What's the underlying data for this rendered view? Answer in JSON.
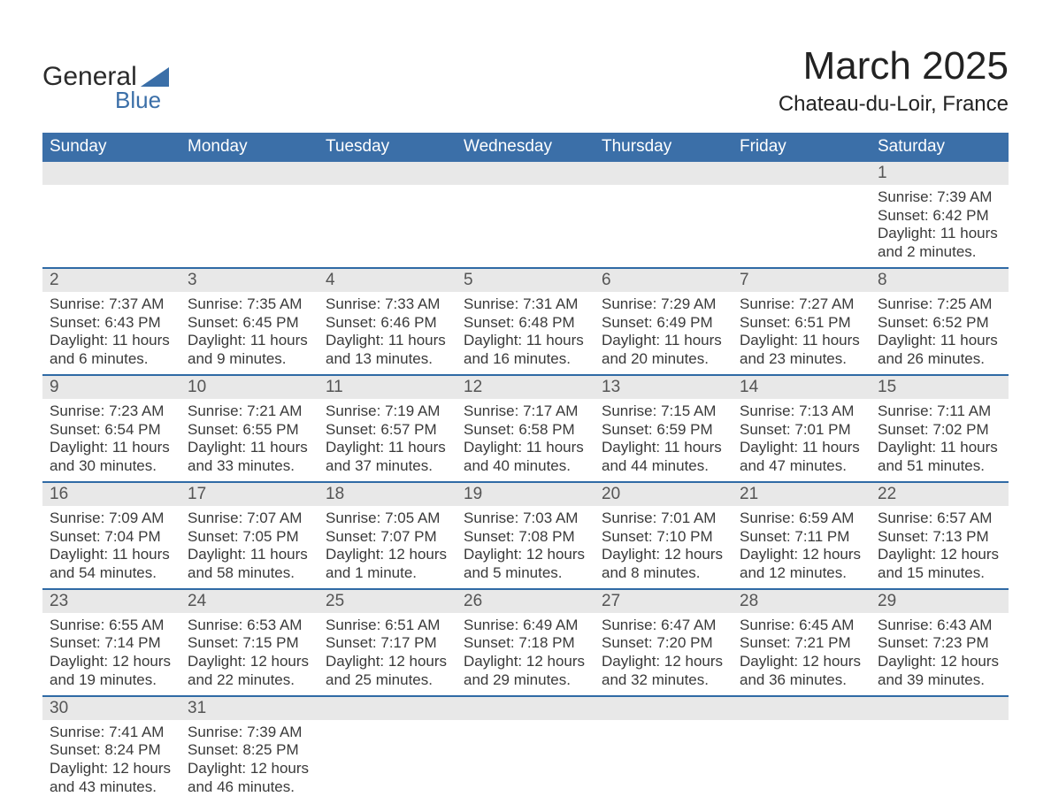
{
  "brand": {
    "line1": "General",
    "line2": "Blue"
  },
  "header": {
    "month_title": "March 2025",
    "location": "Chateau-du-Loir, France"
  },
  "colors": {
    "header_blue": "#3b6fa8",
    "row_separator": "#2f6aa5",
    "grey_bg": "#e8e8e8",
    "text": "#3a3a3a",
    "background": "#ffffff"
  },
  "calendar": {
    "type": "table",
    "columns": [
      "Sunday",
      "Monday",
      "Tuesday",
      "Wednesday",
      "Thursday",
      "Friday",
      "Saturday"
    ],
    "weeks": [
      [
        null,
        null,
        null,
        null,
        null,
        null,
        {
          "n": "1",
          "sunrise": "Sunrise: 7:39 AM",
          "sunset": "Sunset: 6:42 PM",
          "daylight": "Daylight: 11 hours and 2 minutes."
        }
      ],
      [
        {
          "n": "2",
          "sunrise": "Sunrise: 7:37 AM",
          "sunset": "Sunset: 6:43 PM",
          "daylight": "Daylight: 11 hours and 6 minutes."
        },
        {
          "n": "3",
          "sunrise": "Sunrise: 7:35 AM",
          "sunset": "Sunset: 6:45 PM",
          "daylight": "Daylight: 11 hours and 9 minutes."
        },
        {
          "n": "4",
          "sunrise": "Sunrise: 7:33 AM",
          "sunset": "Sunset: 6:46 PM",
          "daylight": "Daylight: 11 hours and 13 minutes."
        },
        {
          "n": "5",
          "sunrise": "Sunrise: 7:31 AM",
          "sunset": "Sunset: 6:48 PM",
          "daylight": "Daylight: 11 hours and 16 minutes."
        },
        {
          "n": "6",
          "sunrise": "Sunrise: 7:29 AM",
          "sunset": "Sunset: 6:49 PM",
          "daylight": "Daylight: 11 hours and 20 minutes."
        },
        {
          "n": "7",
          "sunrise": "Sunrise: 7:27 AM",
          "sunset": "Sunset: 6:51 PM",
          "daylight": "Daylight: 11 hours and 23 minutes."
        },
        {
          "n": "8",
          "sunrise": "Sunrise: 7:25 AM",
          "sunset": "Sunset: 6:52 PM",
          "daylight": "Daylight: 11 hours and 26 minutes."
        }
      ],
      [
        {
          "n": "9",
          "sunrise": "Sunrise: 7:23 AM",
          "sunset": "Sunset: 6:54 PM",
          "daylight": "Daylight: 11 hours and 30 minutes."
        },
        {
          "n": "10",
          "sunrise": "Sunrise: 7:21 AM",
          "sunset": "Sunset: 6:55 PM",
          "daylight": "Daylight: 11 hours and 33 minutes."
        },
        {
          "n": "11",
          "sunrise": "Sunrise: 7:19 AM",
          "sunset": "Sunset: 6:57 PM",
          "daylight": "Daylight: 11 hours and 37 minutes."
        },
        {
          "n": "12",
          "sunrise": "Sunrise: 7:17 AM",
          "sunset": "Sunset: 6:58 PM",
          "daylight": "Daylight: 11 hours and 40 minutes."
        },
        {
          "n": "13",
          "sunrise": "Sunrise: 7:15 AM",
          "sunset": "Sunset: 6:59 PM",
          "daylight": "Daylight: 11 hours and 44 minutes."
        },
        {
          "n": "14",
          "sunrise": "Sunrise: 7:13 AM",
          "sunset": "Sunset: 7:01 PM",
          "daylight": "Daylight: 11 hours and 47 minutes."
        },
        {
          "n": "15",
          "sunrise": "Sunrise: 7:11 AM",
          "sunset": "Sunset: 7:02 PM",
          "daylight": "Daylight: 11 hours and 51 minutes."
        }
      ],
      [
        {
          "n": "16",
          "sunrise": "Sunrise: 7:09 AM",
          "sunset": "Sunset: 7:04 PM",
          "daylight": "Daylight: 11 hours and 54 minutes."
        },
        {
          "n": "17",
          "sunrise": "Sunrise: 7:07 AM",
          "sunset": "Sunset: 7:05 PM",
          "daylight": "Daylight: 11 hours and 58 minutes."
        },
        {
          "n": "18",
          "sunrise": "Sunrise: 7:05 AM",
          "sunset": "Sunset: 7:07 PM",
          "daylight": "Daylight: 12 hours and 1 minute."
        },
        {
          "n": "19",
          "sunrise": "Sunrise: 7:03 AM",
          "sunset": "Sunset: 7:08 PM",
          "daylight": "Daylight: 12 hours and 5 minutes."
        },
        {
          "n": "20",
          "sunrise": "Sunrise: 7:01 AM",
          "sunset": "Sunset: 7:10 PM",
          "daylight": "Daylight: 12 hours and 8 minutes."
        },
        {
          "n": "21",
          "sunrise": "Sunrise: 6:59 AM",
          "sunset": "Sunset: 7:11 PM",
          "daylight": "Daylight: 12 hours and 12 minutes."
        },
        {
          "n": "22",
          "sunrise": "Sunrise: 6:57 AM",
          "sunset": "Sunset: 7:13 PM",
          "daylight": "Daylight: 12 hours and 15 minutes."
        }
      ],
      [
        {
          "n": "23",
          "sunrise": "Sunrise: 6:55 AM",
          "sunset": "Sunset: 7:14 PM",
          "daylight": "Daylight: 12 hours and 19 minutes."
        },
        {
          "n": "24",
          "sunrise": "Sunrise: 6:53 AM",
          "sunset": "Sunset: 7:15 PM",
          "daylight": "Daylight: 12 hours and 22 minutes."
        },
        {
          "n": "25",
          "sunrise": "Sunrise: 6:51 AM",
          "sunset": "Sunset: 7:17 PM",
          "daylight": "Daylight: 12 hours and 25 minutes."
        },
        {
          "n": "26",
          "sunrise": "Sunrise: 6:49 AM",
          "sunset": "Sunset: 7:18 PM",
          "daylight": "Daylight: 12 hours and 29 minutes."
        },
        {
          "n": "27",
          "sunrise": "Sunrise: 6:47 AM",
          "sunset": "Sunset: 7:20 PM",
          "daylight": "Daylight: 12 hours and 32 minutes."
        },
        {
          "n": "28",
          "sunrise": "Sunrise: 6:45 AM",
          "sunset": "Sunset: 7:21 PM",
          "daylight": "Daylight: 12 hours and 36 minutes."
        },
        {
          "n": "29",
          "sunrise": "Sunrise: 6:43 AM",
          "sunset": "Sunset: 7:23 PM",
          "daylight": "Daylight: 12 hours and 39 minutes."
        }
      ],
      [
        {
          "n": "30",
          "sunrise": "Sunrise: 7:41 AM",
          "sunset": "Sunset: 8:24 PM",
          "daylight": "Daylight: 12 hours and 43 minutes."
        },
        {
          "n": "31",
          "sunrise": "Sunrise: 7:39 AM",
          "sunset": "Sunset: 8:25 PM",
          "daylight": "Daylight: 12 hours and 46 minutes."
        },
        null,
        null,
        null,
        null,
        null
      ]
    ]
  }
}
